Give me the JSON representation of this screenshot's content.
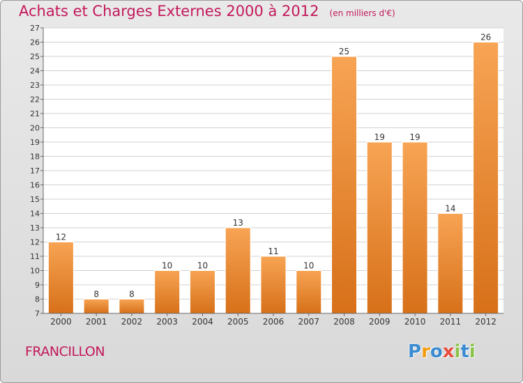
{
  "chart_data": {
    "type": "bar",
    "title": "Achats et Charges Externes 2000 à 2012",
    "unit": "(en milliers d'€)",
    "categories": [
      "2000",
      "2001",
      "2002",
      "2003",
      "2004",
      "2005",
      "2006",
      "2007",
      "2008",
      "2009",
      "2010",
      "2011",
      "2012"
    ],
    "values": [
      12,
      8,
      8,
      10,
      10,
      13,
      11,
      10,
      25,
      19,
      19,
      14,
      26
    ],
    "data_labels": [
      "12",
      "8",
      "8",
      "10",
      "10",
      "13",
      "11",
      "10",
      "25",
      "19",
      "19",
      "14",
      "26"
    ],
    "y_ticks": [
      "7",
      "8",
      "9",
      "10",
      "11",
      "12",
      "13",
      "14",
      "15",
      "16",
      "17",
      "18",
      "19",
      "20",
      "21",
      "22",
      "23",
      "24",
      "25",
      "26",
      "27"
    ],
    "ylim": [
      7,
      27
    ],
    "grid": true,
    "bar_color_top": "#f7a454",
    "bar_color_bottom": "#d77019",
    "xlabel": "",
    "ylabel": ""
  },
  "location": "FRANCILLON",
  "logo": {
    "letters": [
      "P",
      "r",
      "o",
      "x",
      "i",
      "t",
      "i"
    ],
    "colors": [
      "#3b8bd1",
      "#f39c12",
      "#3b8bd1",
      "#e74c3c",
      "#8bc34a",
      "#3b8bd1",
      "#8bc34a"
    ]
  }
}
